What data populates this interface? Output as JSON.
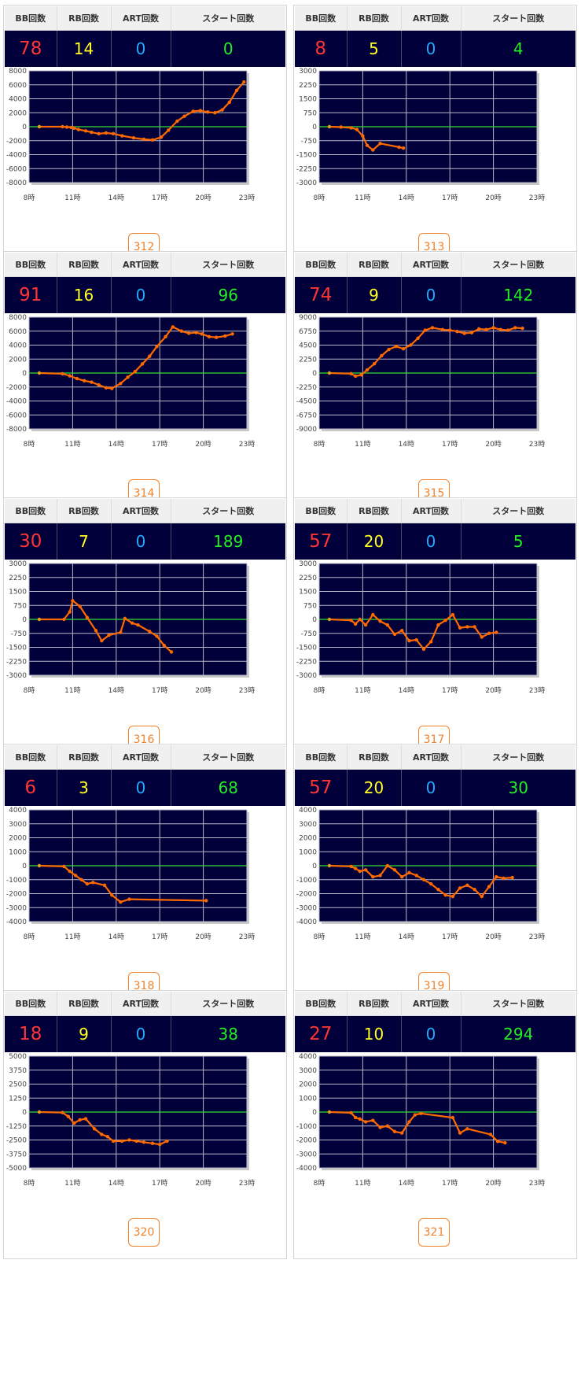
{
  "headers": {
    "bb": "BB回数",
    "rb": "RB回数",
    "art": "ART回数",
    "start": "スタート回数"
  },
  "colors": {
    "plot_bg": "#02003a",
    "zero_line": "#33dd33",
    "series_line": "#ff6a00",
    "grid": "#b8b8c8",
    "button": "#f0822c"
  },
  "machines": [
    {
      "id": "312",
      "bb": "78",
      "rb": "14",
      "art": "0",
      "start": "0"
    },
    {
      "id": "313",
      "bb": "8",
      "rb": "5",
      "art": "0",
      "start": "4"
    },
    {
      "id": "314",
      "bb": "91",
      "rb": "16",
      "art": "0",
      "start": "96"
    },
    {
      "id": "315",
      "bb": "74",
      "rb": "9",
      "art": "0",
      "start": "142"
    },
    {
      "id": "316",
      "bb": "30",
      "rb": "7",
      "art": "0",
      "start": "189"
    },
    {
      "id": "317",
      "bb": "57",
      "rb": "20",
      "art": "0",
      "start": "5"
    },
    {
      "id": "318",
      "bb": "6",
      "rb": "3",
      "art": "0",
      "start": "68"
    },
    {
      "id": "319",
      "bb": "57",
      "rb": "20",
      "art": "0",
      "start": "30"
    },
    {
      "id": "320",
      "bb": "18",
      "rb": "9",
      "art": "0",
      "start": "38"
    },
    {
      "id": "321",
      "bb": "27",
      "rb": "10",
      "art": "0",
      "start": "294"
    }
  ],
  "chart_data": [
    {
      "type": "line",
      "x_ticks": [
        "8時",
        "11時",
        "14時",
        "17時",
        "20時",
        "23時"
      ],
      "xlim": [
        8,
        23
      ],
      "ylim": [
        -8000,
        8000
      ],
      "y_ticks": [
        "8000",
        "6000",
        "4000",
        "2000",
        "0",
        "-2000",
        "-4000",
        "-6000",
        "-8000"
      ],
      "x": [
        8.7,
        10.3,
        10.6,
        10.9,
        11.1,
        11.4,
        11.9,
        12.3,
        12.8,
        13.3,
        13.8,
        14.4,
        15.2,
        15.9,
        16.5,
        17.1,
        17.6,
        18.2,
        18.7,
        19.3,
        19.8,
        20.3,
        20.8,
        21.3,
        21.8,
        22.3,
        22.8
      ],
      "values": [
        0,
        0,
        -50,
        -100,
        -200,
        -400,
        -600,
        -800,
        -1000,
        -900,
        -1000,
        -1300,
        -1600,
        -1800,
        -1900,
        -1500,
        -500,
        800,
        1500,
        2200,
        2300,
        2100,
        2000,
        2400,
        3500,
        5200,
        6400
      ]
    },
    {
      "type": "line",
      "x_ticks": [
        "8時",
        "11時",
        "14時",
        "17時",
        "20時",
        "23時"
      ],
      "xlim": [
        8,
        23
      ],
      "ylim": [
        -3000,
        3000
      ],
      "y_ticks": [
        "3000",
        "2250",
        "1500",
        "750",
        "0",
        "-750",
        "-1500",
        "-2250",
        "-3000"
      ],
      "x": [
        8.7,
        9.5,
        10.2,
        10.6,
        11.0,
        11.3,
        11.7,
        12.2,
        13.5,
        13.8
      ],
      "values": [
        0,
        -20,
        -60,
        -150,
        -500,
        -1000,
        -1250,
        -900,
        -1100,
        -1150
      ]
    },
    {
      "type": "line",
      "x_ticks": [
        "8時",
        "11時",
        "14時",
        "17時",
        "20時",
        "23時"
      ],
      "xlim": [
        8,
        23
      ],
      "ylim": [
        -8000,
        8000
      ],
      "y_ticks": [
        "8000",
        "6000",
        "4000",
        "2000",
        "0",
        "-2000",
        "-4000",
        "-6000",
        "-8000"
      ],
      "x": [
        8.7,
        10.3,
        10.8,
        11.3,
        11.8,
        12.3,
        12.8,
        13.3,
        13.7,
        14.3,
        14.8,
        15.3,
        15.8,
        16.3,
        16.8,
        17.4,
        17.9,
        18.5,
        19.0,
        19.5,
        19.9,
        20.4,
        20.9,
        21.5,
        22.0
      ],
      "values": [
        0,
        -100,
        -400,
        -800,
        -1100,
        -1300,
        -1700,
        -2100,
        -2200,
        -1500,
        -600,
        200,
        1300,
        2400,
        3800,
        5200,
        6600,
        6000,
        5700,
        5800,
        5600,
        5200,
        5100,
        5300,
        5600
      ]
    },
    {
      "type": "line",
      "x_ticks": [
        "8時",
        "11時",
        "14時",
        "17時",
        "20時",
        "23時"
      ],
      "xlim": [
        8,
        23
      ],
      "ylim": [
        -9000,
        9000
      ],
      "y_ticks": [
        "9000",
        "6750",
        "4500",
        "2250",
        "0",
        "-2250",
        "-4500",
        "-6750",
        "-9000"
      ],
      "x": [
        8.7,
        10.2,
        10.5,
        10.9,
        11.3,
        11.8,
        12.3,
        12.8,
        13.3,
        13.8,
        14.3,
        14.8,
        15.3,
        15.8,
        16.5,
        17.0,
        17.5,
        18.0,
        18.5,
        19.0,
        19.5,
        20.0,
        20.5,
        21.0,
        21.5,
        22.0
      ],
      "values": [
        0,
        -100,
        -500,
        -300,
        500,
        1500,
        2800,
        3800,
        4300,
        3900,
        4500,
        5600,
        6900,
        7300,
        7000,
        6900,
        6700,
        6400,
        6500,
        7100,
        7000,
        7300,
        7000,
        6900,
        7300,
        7200
      ]
    },
    {
      "type": "line",
      "x_ticks": [
        "8時",
        "11時",
        "14時",
        "17時",
        "20時",
        "23時"
      ],
      "xlim": [
        8,
        23
      ],
      "ylim": [
        -3000,
        3000
      ],
      "y_ticks": [
        "3000",
        "2250",
        "1500",
        "750",
        "0",
        "-750",
        "-1500",
        "-2250",
        "-3000"
      ],
      "x": [
        8.7,
        10.4,
        10.8,
        11.0,
        11.5,
        12.0,
        12.6,
        13.0,
        13.5,
        14.3,
        14.6,
        15.1,
        15.5,
        16.3,
        16.8,
        17.3,
        17.8
      ],
      "values": [
        0,
        0,
        400,
        1000,
        700,
        100,
        -600,
        -1150,
        -850,
        -700,
        50,
        -200,
        -300,
        -650,
        -900,
        -1400,
        -1750
      ]
    },
    {
      "type": "line",
      "x_ticks": [
        "8時",
        "11時",
        "14時",
        "17時",
        "20時",
        "23時"
      ],
      "xlim": [
        8,
        23
      ],
      "ylim": [
        -3000,
        3000
      ],
      "y_ticks": [
        "3000",
        "2250",
        "1500",
        "750",
        "0",
        "-750",
        "-1500",
        "-2250",
        "-3000"
      ],
      "x": [
        8.7,
        10.2,
        10.5,
        10.8,
        11.2,
        11.7,
        12.2,
        12.7,
        13.2,
        13.7,
        14.2,
        14.7,
        15.2,
        15.7,
        16.2,
        16.7,
        17.2,
        17.7,
        18.2,
        18.7,
        19.2,
        19.7,
        20.2
      ],
      "values": [
        0,
        -50,
        -250,
        0,
        -300,
        250,
        -100,
        -300,
        -800,
        -600,
        -1150,
        -1100,
        -1600,
        -1200,
        -300,
        -50,
        250,
        -450,
        -400,
        -400,
        -950,
        -750,
        -700
      ]
    },
    {
      "type": "line",
      "x_ticks": [
        "8時",
        "11時",
        "14時",
        "17時",
        "20時",
        "23時"
      ],
      "xlim": [
        8,
        23
      ],
      "ylim": [
        -4000,
        4000
      ],
      "y_ticks": [
        "4000",
        "3000",
        "2000",
        "1000",
        "0",
        "-1000",
        "-2000",
        "-3000",
        "-4000"
      ],
      "x": [
        8.7,
        10.4,
        10.8,
        11.2,
        11.6,
        12.0,
        12.4,
        13.2,
        13.7,
        14.3,
        14.9,
        20.2
      ],
      "values": [
        0,
        -50,
        -400,
        -700,
        -1000,
        -1300,
        -1200,
        -1400,
        -2100,
        -2600,
        -2400,
        -2500
      ]
    },
    {
      "type": "line",
      "x_ticks": [
        "8時",
        "11時",
        "14時",
        "17時",
        "20時",
        "23時"
      ],
      "xlim": [
        8,
        23
      ],
      "ylim": [
        -4000,
        4000
      ],
      "y_ticks": [
        "4000",
        "3000",
        "2000",
        "1000",
        "0",
        "-1000",
        "-2000",
        "-3000",
        "-4000"
      ],
      "x": [
        8.7,
        10.2,
        10.5,
        10.8,
        11.2,
        11.7,
        12.2,
        12.7,
        13.2,
        13.7,
        14.2,
        14.7,
        15.2,
        15.7,
        16.2,
        16.7,
        17.2,
        17.7,
        18.2,
        18.7,
        19.2,
        19.7,
        20.2,
        20.7,
        21.3
      ],
      "values": [
        0,
        -50,
        -200,
        -400,
        -300,
        -800,
        -700,
        0,
        -300,
        -800,
        -500,
        -700,
        -1000,
        -1300,
        -1700,
        -2100,
        -2200,
        -1600,
        -1400,
        -1700,
        -2200,
        -1500,
        -800,
        -900,
        -850
      ]
    },
    {
      "type": "line",
      "x_ticks": [
        "8時",
        "11時",
        "14時",
        "17時",
        "20時",
        "23時"
      ],
      "xlim": [
        8,
        23
      ],
      "ylim": [
        -5000,
        5000
      ],
      "y_ticks": [
        "5000",
        "3750",
        "2500",
        "1250",
        "0",
        "-1250",
        "-2500",
        "-3750",
        "-5000"
      ],
      "x": [
        8.7,
        10.3,
        10.7,
        11.1,
        11.5,
        11.9,
        12.5,
        13.0,
        13.4,
        13.8,
        14.4,
        14.9,
        15.4,
        15.9,
        16.5,
        17.0,
        17.5
      ],
      "values": [
        0,
        -50,
        -400,
        -1000,
        -700,
        -600,
        -1500,
        -2000,
        -2200,
        -2600,
        -2600,
        -2500,
        -2600,
        -2700,
        -2800,
        -2900,
        -2600
      ]
    },
    {
      "type": "line",
      "x_ticks": [
        "8時",
        "11時",
        "14時",
        "17時",
        "20時",
        "23時"
      ],
      "xlim": [
        8,
        23
      ],
      "ylim": [
        -4000,
        4000
      ],
      "y_ticks": [
        "4000",
        "3000",
        "2000",
        "1000",
        "0",
        "-1000",
        "-2000",
        "-3000",
        "-4000"
      ],
      "x": [
        8.7,
        10.2,
        10.5,
        10.8,
        11.2,
        11.7,
        12.2,
        12.7,
        13.2,
        13.7,
        14.2,
        14.6,
        15.0,
        17.2,
        17.7,
        18.2,
        19.8,
        20.3,
        20.8
      ],
      "values": [
        0,
        -50,
        -400,
        -500,
        -700,
        -600,
        -1100,
        -1000,
        -1400,
        -1500,
        -700,
        -200,
        -100,
        -400,
        -1500,
        -1200,
        -1600,
        -2100,
        -2200
      ]
    }
  ]
}
